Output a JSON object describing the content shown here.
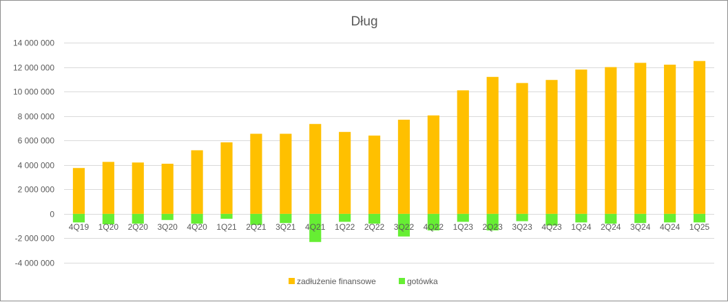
{
  "colors": {
    "debt": "#FFC000",
    "cash": "#66EE33",
    "grid": "#D9D9D9",
    "text": "#595959"
  },
  "chart_data": {
    "type": "bar",
    "title": "Dług",
    "xlabel": "",
    "ylabel": "",
    "ylim": [
      -4000000,
      14000000
    ],
    "yticks": [
      14000000,
      12000000,
      10000000,
      8000000,
      6000000,
      4000000,
      2000000,
      0,
      -2000000,
      -4000000
    ],
    "ytick_labels": [
      "14 000 000",
      "12 000 000",
      "10 000 000",
      "8 000 000",
      "6 000 000",
      "4 000 000",
      "2 000 000",
      "0",
      "-2 000 000",
      "-4 000 000"
    ],
    "grid": true,
    "legend_position": "bottom",
    "stacked": "overlap",
    "categories": [
      "4Q19",
      "1Q20",
      "2Q20",
      "3Q20",
      "4Q20",
      "1Q21",
      "2Q21",
      "3Q21",
      "4Q21",
      "1Q22",
      "2Q22",
      "3Q22",
      "4Q22",
      "1Q23",
      "2Q23",
      "3Q23",
      "4Q23",
      "1Q24",
      "2Q24",
      "3Q24",
      "4Q24",
      "1Q25"
    ],
    "series": [
      {
        "name": "zadłużenie finansowe",
        "color": "#FFC000",
        "values": [
          3750000,
          4250000,
          4200000,
          4100000,
          5200000,
          5850000,
          6550000,
          6550000,
          7350000,
          6700000,
          6400000,
          7700000,
          8050000,
          10100000,
          11200000,
          10700000,
          10950000,
          11800000,
          12000000,
          12350000,
          12200000,
          12500000
        ]
      },
      {
        "name": "gotówka",
        "color": "#66EE33",
        "values": [
          -700000,
          -850000,
          -800000,
          -500000,
          -800000,
          -400000,
          -900000,
          -750000,
          -2300000,
          -650000,
          -800000,
          -1850000,
          -1350000,
          -650000,
          -1350000,
          -600000,
          -950000,
          -700000,
          -800000,
          -750000,
          -700000,
          -700000
        ]
      }
    ]
  }
}
